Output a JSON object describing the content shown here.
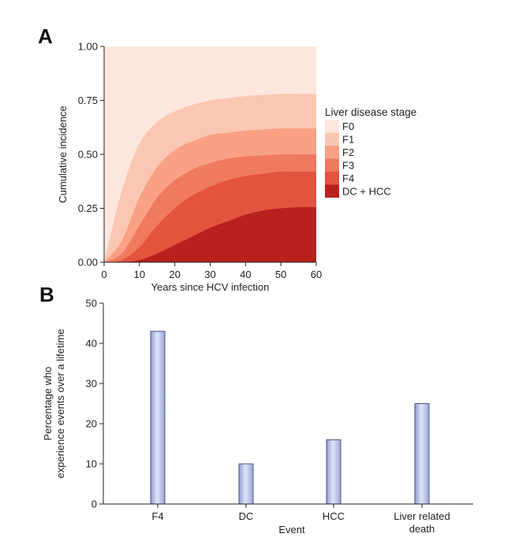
{
  "chart_data": [
    {
      "panel": "A",
      "type": "area",
      "xlabel": "Years since HCV infection",
      "ylabel": "Cumulative incidence",
      "xlim": [
        0,
        60
      ],
      "ylim": [
        0,
        1
      ],
      "x_ticks": [
        "0",
        "10",
        "20",
        "30",
        "40",
        "50",
        "60"
      ],
      "y_ticks": [
        "0.00",
        "0.25",
        "0.50",
        "0.75",
        "1.00"
      ],
      "legend_title": "Liver disease stage",
      "legend_position": "right",
      "x": [
        0,
        5,
        10,
        15,
        20,
        25,
        30,
        35,
        40,
        45,
        50,
        55,
        60
      ],
      "series": [
        {
          "name": "F0",
          "color": "#fde6de",
          "values": [
            1.0,
            1.0,
            1.0,
            1.0,
            1.0,
            1.0,
            1.0,
            1.0,
            1.0,
            1.0,
            1.0,
            1.0,
            1.0
          ]
        },
        {
          "name": "F1",
          "color": "#fbc7b2",
          "values": [
            0.0,
            0.33,
            0.55,
            0.65,
            0.7,
            0.73,
            0.75,
            0.76,
            0.77,
            0.775,
            0.78,
            0.78,
            0.78
          ]
        },
        {
          "name": "F2",
          "color": "#f9a085",
          "values": [
            0.0,
            0.1,
            0.3,
            0.44,
            0.52,
            0.56,
            0.59,
            0.6,
            0.61,
            0.615,
            0.62,
            0.62,
            0.62
          ]
        },
        {
          "name": "F3",
          "color": "#f07a5e",
          "values": [
            0.0,
            0.04,
            0.17,
            0.3,
            0.38,
            0.43,
            0.46,
            0.48,
            0.49,
            0.495,
            0.5,
            0.5,
            0.5
          ]
        },
        {
          "name": "F4",
          "color": "#e4533d",
          "values": [
            0.0,
            0.01,
            0.07,
            0.17,
            0.25,
            0.31,
            0.35,
            0.38,
            0.4,
            0.41,
            0.42,
            0.42,
            0.42
          ]
        },
        {
          "name": "DC + HCC",
          "color": "#b8211e",
          "values": [
            0.0,
            0.0,
            0.01,
            0.04,
            0.08,
            0.12,
            0.16,
            0.19,
            0.22,
            0.24,
            0.25,
            0.255,
            0.255
          ]
        }
      ]
    },
    {
      "panel": "B",
      "type": "bar",
      "xlabel": "Event",
      "ylabel_lines": [
        "Percentage who",
        "experience events over a lifetime"
      ],
      "categories": [
        [
          "F4"
        ],
        [
          "DC"
        ],
        [
          "HCC"
        ],
        [
          "Liver related",
          "death"
        ]
      ],
      "values": [
        43,
        10,
        16,
        25
      ],
      "ylim": [
        0,
        50
      ],
      "y_ticks": [
        "0",
        "10",
        "20",
        "30",
        "40",
        "50"
      ],
      "bar_color": "#b8c4ee",
      "bar_edge_color": "#4a5680"
    }
  ]
}
